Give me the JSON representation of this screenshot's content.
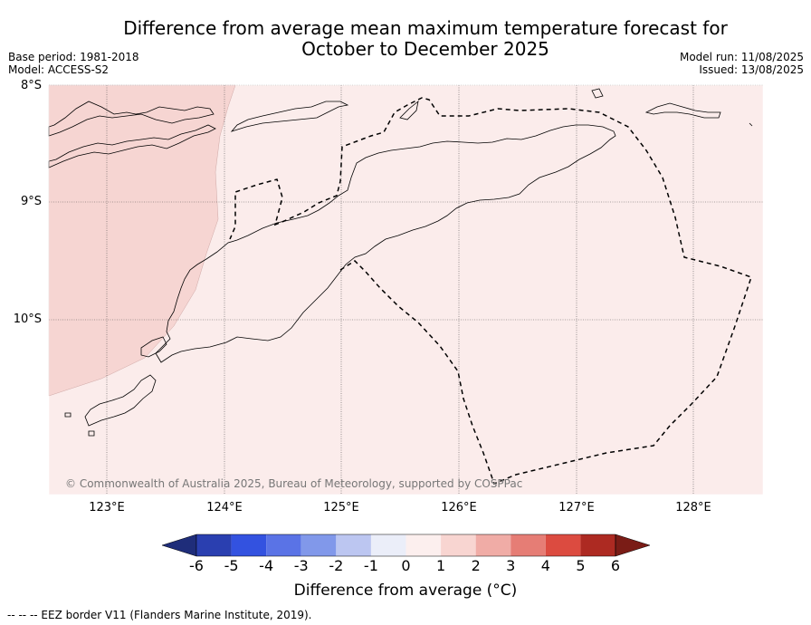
{
  "title_line1": "Difference from average mean maximum temperature forecast for",
  "title_line2": "October to December 2025",
  "base_period": "Base period: 1981-2018",
  "model": "Model: ACCESS-S2",
  "model_run": "Model run: 11/08/2025",
  "issued": "Issued: 13/08/2025",
  "lat_labels": [
    "8°S",
    "9°S",
    "10°S"
  ],
  "lon_labels": [
    "123°E",
    "124°E",
    "125°E",
    "126°E",
    "127°E",
    "128°E"
  ],
  "copyright": "© Commonwealth of Australia 2025, Bureau of Meteorology, supported by COSPPac",
  "colorbar": {
    "label": "Difference from average (°C)",
    "ticks": [
      "-6",
      "-5",
      "-4",
      "-3",
      "-2",
      "-1",
      "0",
      "1",
      "2",
      "3",
      "4",
      "5",
      "6"
    ],
    "colors": [
      "#1f2d7a",
      "#2a3fb0",
      "#3352e0",
      "#5a73e6",
      "#8198ea",
      "#bcc6f1",
      "#ebeef9",
      "#fcefee",
      "#f8d5d1",
      "#f0aca6",
      "#e67d75",
      "#dc4b40",
      "#ad2a22",
      "#7a1c16"
    ]
  },
  "map_colors": {
    "warm_1_2": "#f6d5d2",
    "warm_0_1": "#fbeceb"
  },
  "footnote": "--  --  -- EEZ border V11 (Flanders Marine Institute, 2019)."
}
